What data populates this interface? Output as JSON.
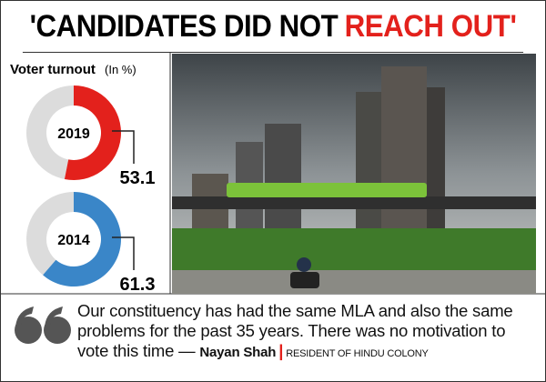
{
  "header": {
    "title_black": "'CANDIDATES DID NOT",
    "title_red": "REACH OUT'"
  },
  "panel": {
    "title": "Voter turnout",
    "unit": "(In %)"
  },
  "chart_data": [
    {
      "type": "donut",
      "label": "2019",
      "values": [
        53.1
      ],
      "color": "#e3211c",
      "rest_color": "#dcdcdc",
      "ylim": [
        0,
        100
      ]
    },
    {
      "type": "donut",
      "label": "2014",
      "values": [
        61.3
      ],
      "color": "#3a86c8",
      "rest_color": "#dcdcdc",
      "ylim": [
        0,
        100
      ]
    }
  ],
  "quote": {
    "text": "Our constituency has had the same MLA and also the same problems for the past 35 years. There was no motivation to vote this time —",
    "author": "Nayan Shah",
    "separator": "|",
    "role": "RESIDENT OF HINDU COLONY"
  }
}
